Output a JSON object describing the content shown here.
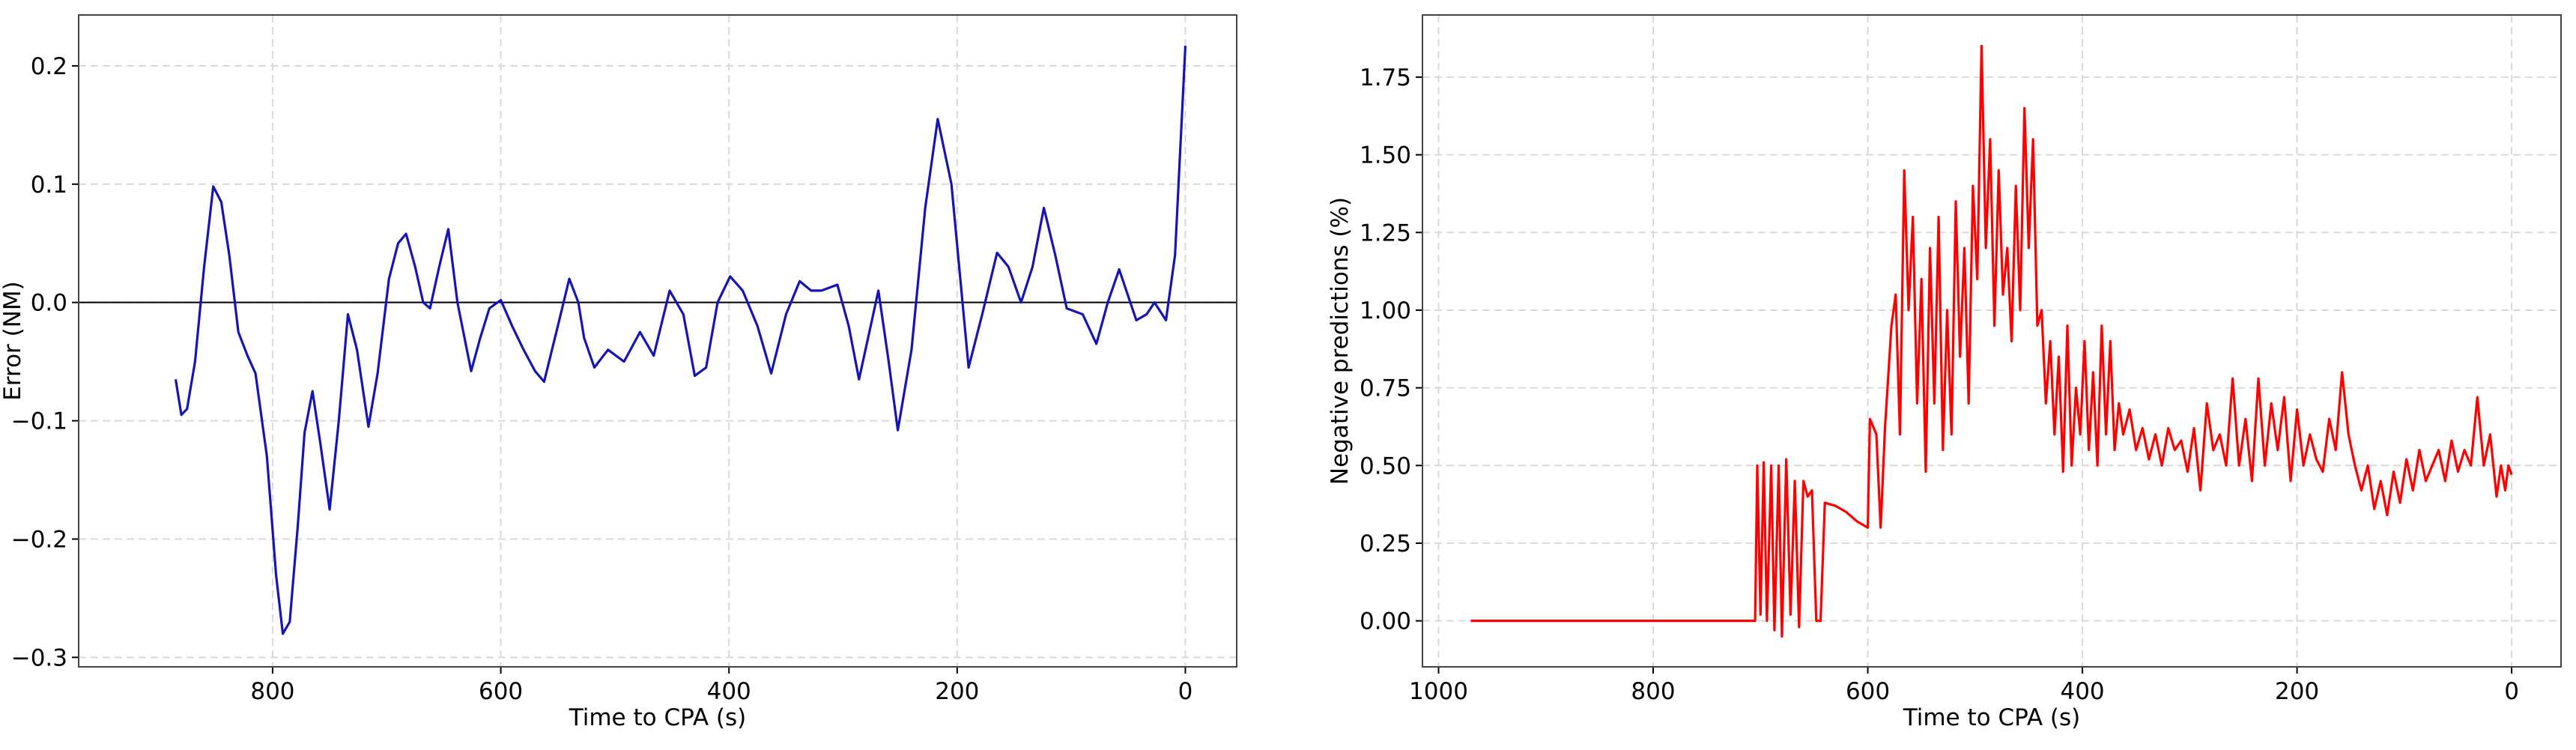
{
  "chart_data": [
    {
      "type": "line",
      "xlabel": "Time to CPA (s)",
      "ylabel": "Error (NM)",
      "color": "#1515b5",
      "grid": true,
      "reference_line": 0,
      "reference_color": "#000000",
      "xlim": [
        970,
        -45
      ],
      "ylim": [
        -0.308,
        0.243
      ],
      "xticks": [
        800,
        600,
        400,
        200,
        0
      ],
      "yticks": [
        {
          "value": -0.3,
          "label": "−0.3"
        },
        {
          "value": -0.2,
          "label": "−0.2"
        },
        {
          "value": -0.1,
          "label": "−0.1"
        },
        {
          "value": 0,
          "label": "0.0"
        },
        0.1,
        0.2
      ],
      "x": [
        885,
        880,
        875,
        868,
        860,
        852,
        845,
        838,
        830,
        822,
        815,
        805,
        797,
        791,
        785,
        778,
        772,
        765,
        758,
        750,
        742,
        734,
        726,
        716,
        708,
        698,
        690,
        683,
        675,
        668,
        662,
        654,
        646,
        638,
        626,
        618,
        610,
        600,
        590,
        580,
        570,
        562,
        550,
        540,
        532,
        527,
        518,
        506,
        492,
        478,
        466,
        452,
        440,
        430,
        420,
        410,
        399,
        388,
        375,
        363,
        350,
        338,
        328,
        319,
        305,
        295,
        286,
        269,
        260,
        252,
        240,
        228,
        217,
        205,
        190,
        178,
        165,
        155,
        144,
        134,
        124,
        114,
        104,
        90,
        78,
        68,
        58,
        43,
        34,
        27,
        17,
        9,
        0
      ],
      "values": [
        -0.065,
        -0.095,
        -0.09,
        -0.05,
        0.03,
        0.098,
        0.085,
        0.04,
        -0.025,
        -0.045,
        -0.06,
        -0.13,
        -0.23,
        -0.28,
        -0.27,
        -0.19,
        -0.11,
        -0.075,
        -0.12,
        -0.175,
        -0.1,
        -0.01,
        -0.04,
        -0.105,
        -0.06,
        0.02,
        0.05,
        0.058,
        0.03,
        0.0,
        -0.005,
        0.03,
        0.062,
        0.0,
        -0.058,
        -0.03,
        -0.005,
        0.002,
        -0.02,
        -0.04,
        -0.058,
        -0.067,
        -0.02,
        0.02,
        0.0,
        -0.03,
        -0.055,
        -0.04,
        -0.05,
        -0.025,
        -0.045,
        0.01,
        -0.01,
        -0.062,
        -0.055,
        0.0,
        0.022,
        0.01,
        -0.02,
        -0.06,
        -0.01,
        0.018,
        0.01,
        0.01,
        0.015,
        -0.02,
        -0.065,
        0.01,
        -0.05,
        -0.108,
        -0.04,
        0.08,
        0.155,
        0.1,
        -0.055,
        -0.01,
        0.042,
        0.03,
        0.0,
        0.03,
        0.08,
        0.04,
        -0.005,
        -0.01,
        -0.035,
        0.0,
        0.028,
        -0.015,
        -0.01,
        0.0,
        -0.015,
        0.04,
        0.217
      ]
    },
    {
      "type": "line",
      "xlabel": "Time to CPA (s)",
      "ylabel": "Negative predictions (%)",
      "color": "#ff0000",
      "grid": true,
      "xlim": [
        1015,
        -46
      ],
      "ylim": [
        -0.148,
        1.95
      ],
      "xticks": [
        1000,
        800,
        600,
        400,
        200,
        0
      ],
      "yticks": [
        {
          "value": 0,
          "label": "0.00"
        },
        {
          "value": 0.25,
          "label": "0.25"
        },
        {
          "value": 0.5,
          "label": "0.50"
        },
        {
          "value": 0.75,
          "label": "0.75"
        },
        {
          "value": 1,
          "label": "1.00"
        },
        {
          "value": 1.25,
          "label": "1.25"
        },
        {
          "value": 1.5,
          "label": "1.50"
        },
        {
          "value": 1.75,
          "label": "1.75"
        }
      ],
      "x": [
        970,
        705,
        703,
        700,
        697,
        694,
        690,
        687,
        683,
        680,
        676,
        672,
        668,
        664,
        660,
        656,
        652,
        648,
        644,
        640,
        630,
        620,
        610,
        600,
        598,
        592,
        588,
        584,
        578,
        574,
        570,
        566,
        562,
        558,
        554,
        550,
        546,
        542,
        538,
        534,
        530,
        526,
        522,
        518,
        514,
        510,
        506,
        502,
        498,
        494,
        490,
        486,
        482,
        478,
        474,
        470,
        466,
        462,
        458,
        454,
        450,
        446,
        442,
        438,
        434,
        430,
        426,
        422,
        418,
        414,
        410,
        406,
        402,
        398,
        394,
        390,
        386,
        382,
        378,
        374,
        370,
        366,
        362,
        356,
        350,
        344,
        338,
        332,
        326,
        320,
        314,
        308,
        302,
        296,
        290,
        284,
        278,
        272,
        266,
        260,
        254,
        248,
        242,
        236,
        230,
        224,
        218,
        212,
        206,
        200,
        194,
        188,
        182,
        176,
        170,
        164,
        158,
        152,
        146,
        140,
        134,
        128,
        122,
        116,
        110,
        104,
        98,
        92,
        86,
        80,
        74,
        68,
        62,
        56,
        50,
        44,
        38,
        32,
        26,
        20,
        14,
        10,
        6,
        3,
        0
      ],
      "values": [
        0,
        0,
        0.5,
        0.02,
        0.51,
        0,
        0.5,
        -0.03,
        0.5,
        -0.05,
        0.52,
        0.02,
        0.45,
        -0.02,
        0.45,
        0.4,
        0.42,
        0,
        0,
        0.38,
        0.37,
        0.35,
        0.32,
        0.3,
        0.65,
        0.6,
        0.3,
        0.62,
        0.95,
        1.05,
        0.6,
        1.45,
        1,
        1.3,
        0.7,
        1.1,
        0.48,
        1.2,
        0.7,
        1.3,
        0.55,
        1,
        0.6,
        1.35,
        0.85,
        1.2,
        0.7,
        1.4,
        1.1,
        1.85,
        1.2,
        1.55,
        0.95,
        1.45,
        1.05,
        1.2,
        0.9,
        1.4,
        1,
        1.65,
        1.2,
        1.55,
        0.95,
        1,
        0.7,
        0.9,
        0.6,
        0.85,
        0.48,
        0.95,
        0.5,
        0.75,
        0.6,
        0.9,
        0.55,
        0.8,
        0.5,
        0.95,
        0.6,
        0.9,
        0.55,
        0.7,
        0.6,
        0.68,
        0.55,
        0.62,
        0.52,
        0.6,
        0.5,
        0.62,
        0.55,
        0.58,
        0.48,
        0.62,
        0.42,
        0.7,
        0.55,
        0.6,
        0.5,
        0.78,
        0.5,
        0.65,
        0.45,
        0.78,
        0.5,
        0.7,
        0.55,
        0.72,
        0.45,
        0.68,
        0.5,
        0.6,
        0.52,
        0.48,
        0.65,
        0.55,
        0.8,
        0.6,
        0.5,
        0.42,
        0.5,
        0.36,
        0.45,
        0.34,
        0.48,
        0.38,
        0.52,
        0.42,
        0.55,
        0.45,
        0.5,
        0.55,
        0.45,
        0.58,
        0.48,
        0.55,
        0.5,
        0.72,
        0.5,
        0.6,
        0.4,
        0.5,
        0.42,
        0.5,
        0.47
      ]
    }
  ]
}
